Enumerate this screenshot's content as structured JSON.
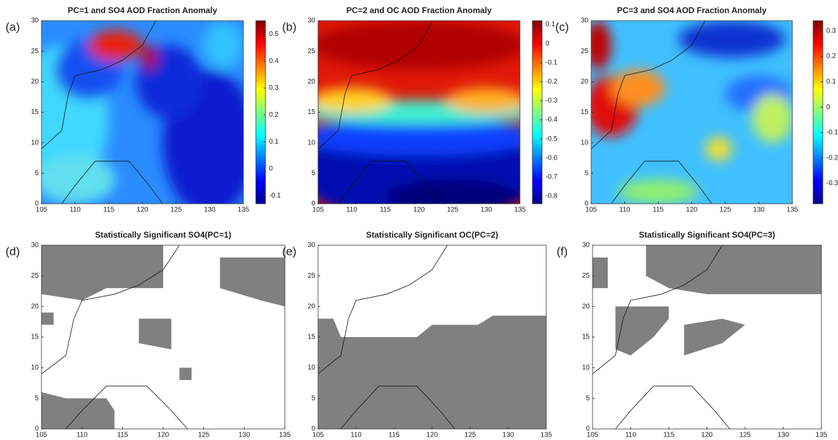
{
  "chart_data": [
    {
      "type": "heatmap",
      "label": "(a)",
      "title": "PC=1 and SO4 AOD Fraction Anomaly",
      "xlim": [
        105,
        135
      ],
      "xticks": [
        105,
        110,
        115,
        120,
        125,
        130,
        135
      ],
      "ylim": [
        0,
        30
      ],
      "yticks": [
        0,
        5,
        10,
        15,
        20,
        25,
        30
      ],
      "clim": [
        -0.13,
        0.55
      ],
      "cticks": [
        -0.1,
        0,
        0.1,
        0.2,
        0.3,
        0.4,
        0.5
      ]
    },
    {
      "type": "heatmap",
      "label": "(b)",
      "title": "PC=2 and OC AOD Fraction Anomaly",
      "xlim": [
        105,
        135
      ],
      "xticks": [
        105,
        110,
        115,
        120,
        125,
        130,
        135
      ],
      "ylim": [
        0,
        30
      ],
      "yticks": [
        0,
        5,
        10,
        15,
        20,
        25,
        30
      ],
      "clim": [
        -0.84,
        0.12
      ],
      "cticks": [
        -0.8,
        -0.7,
        -0.6,
        -0.5,
        -0.4,
        -0.3,
        -0.2,
        -0.1,
        0,
        0.1
      ]
    },
    {
      "type": "heatmap",
      "label": "(c)",
      "title": "PC=3 and SO4 AOD Fraction Anomaly",
      "xlim": [
        105,
        135
      ],
      "xticks": [
        105,
        110,
        115,
        120,
        125,
        130,
        135
      ],
      "ylim": [
        0,
        30
      ],
      "yticks": [
        0,
        5,
        10,
        15,
        20,
        25,
        30
      ],
      "clim": [
        -0.38,
        0.34
      ],
      "cticks": [
        -0.3,
        -0.2,
        -0.1,
        0,
        0.1,
        0.2,
        0.3
      ]
    },
    {
      "type": "mask",
      "label": "(d)",
      "title": "Statistically Significant SO4(PC=1)",
      "xlim": [
        105,
        135
      ],
      "xticks": [
        105,
        110,
        115,
        120,
        125,
        130,
        135
      ],
      "ylim": [
        0,
        30
      ],
      "yticks": [
        0,
        5,
        10,
        15,
        20,
        25,
        30
      ],
      "color": "#808080"
    },
    {
      "type": "mask",
      "label": "(e)",
      "title": "Statistically Significant OC(PC=2)",
      "xlim": [
        105,
        135
      ],
      "xticks": [
        105,
        110,
        115,
        120,
        125,
        130,
        135
      ],
      "ylim": [
        0,
        30
      ],
      "yticks": [
        0,
        5,
        10,
        15,
        20,
        25,
        30
      ],
      "color": "#808080"
    },
    {
      "type": "mask",
      "label": "(f)",
      "title": "Statistically Significant SO4(PC=3)",
      "xlim": [
        105,
        135
      ],
      "xticks": [
        105,
        110,
        115,
        120,
        125,
        130,
        135
      ],
      "ylim": [
        0,
        30
      ],
      "yticks": [
        0,
        5,
        10,
        15,
        20,
        25,
        30
      ],
      "color": "#808080"
    }
  ]
}
